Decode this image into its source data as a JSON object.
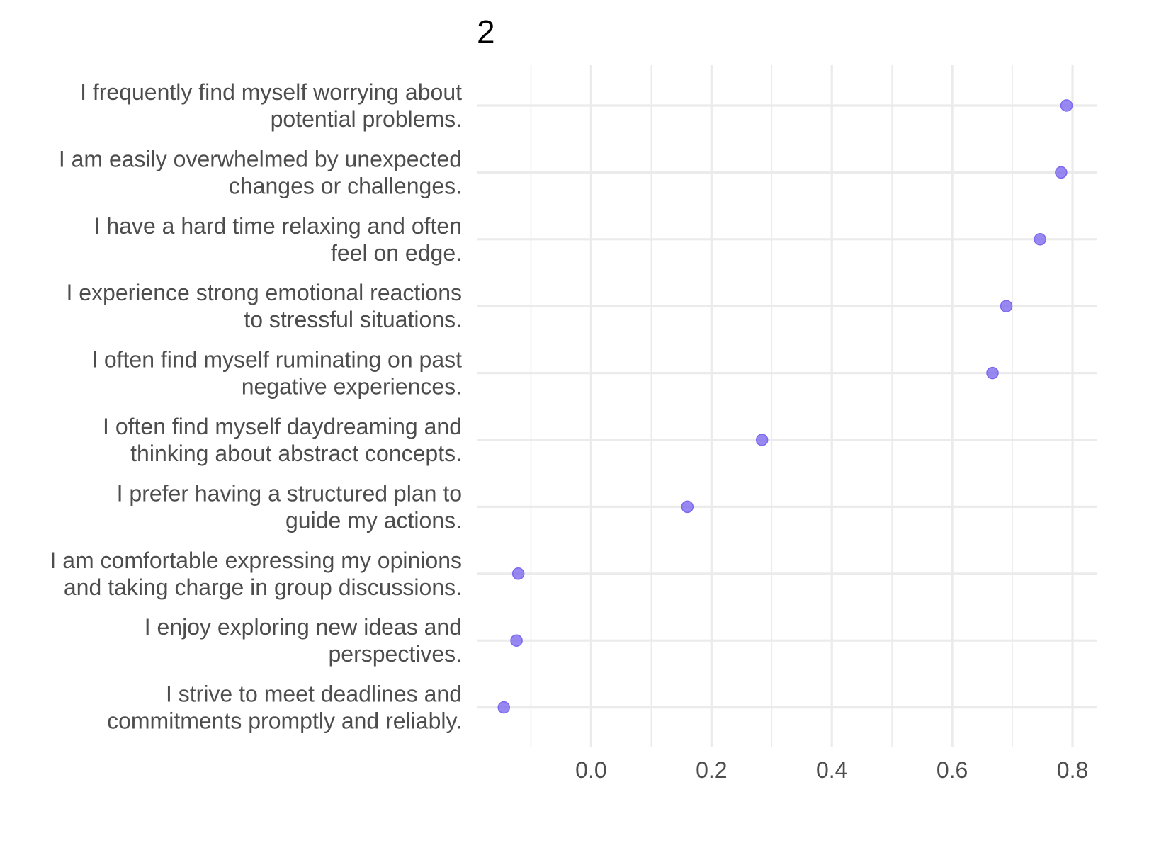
{
  "chart_data": {
    "type": "scatter",
    "title": "2",
    "xlabel": "",
    "ylabel": "",
    "xlim": [
      -0.19,
      0.84
    ],
    "x_ticks": [
      0.0,
      0.2,
      0.4,
      0.6,
      0.8
    ],
    "x_tick_labels": [
      "0.0",
      "0.2",
      "0.4",
      "0.6",
      "0.8"
    ],
    "x_minor_gridlines": [
      -0.1,
      0.1,
      0.3,
      0.5,
      0.7
    ],
    "grid": true,
    "legend": "none",
    "point_color": "#7B68EE",
    "gridline_color": "#EBEBEB",
    "categories": [
      "I frequently find myself worrying about potential problems.",
      "I am easily overwhelmed by unexpected changes or challenges.",
      "I have a hard time relaxing and often feel on edge.",
      "I experience strong emotional reactions to stressful situations.",
      "I often find myself ruminating on past negative experiences.",
      "I often find myself daydreaming and thinking about abstract concepts.",
      "I prefer having a structured plan to guide my actions.",
      "I am comfortable expressing my opinions and taking charge in group discussions.",
      "I enjoy exploring new ideas and perspectives.",
      "I strive to meet deadlines and commitments promptly and reliably."
    ],
    "category_lines": [
      [
        "I frequently find myself worrying about",
        "potential problems."
      ],
      [
        "I am easily overwhelmed by unexpected",
        "changes or challenges."
      ],
      [
        "I have a hard time relaxing and often",
        "feel on edge."
      ],
      [
        "I experience strong emotional reactions",
        "to stressful situations."
      ],
      [
        "I often find myself ruminating on past",
        "negative experiences."
      ],
      [
        "I often find myself daydreaming and",
        "thinking about abstract concepts."
      ],
      [
        "I prefer having a structured plan to",
        "guide my actions."
      ],
      [
        "I am comfortable expressing my opinions",
        "and taking charge in group discussions."
      ],
      [
        "I enjoy exploring new ideas and",
        "perspectives."
      ],
      [
        "I strive to meet deadlines and",
        "commitments promptly and reliably."
      ]
    ],
    "values": [
      0.79,
      0.781,
      0.746,
      0.69,
      0.667,
      0.284,
      0.16,
      -0.121,
      -0.124,
      -0.145
    ]
  }
}
